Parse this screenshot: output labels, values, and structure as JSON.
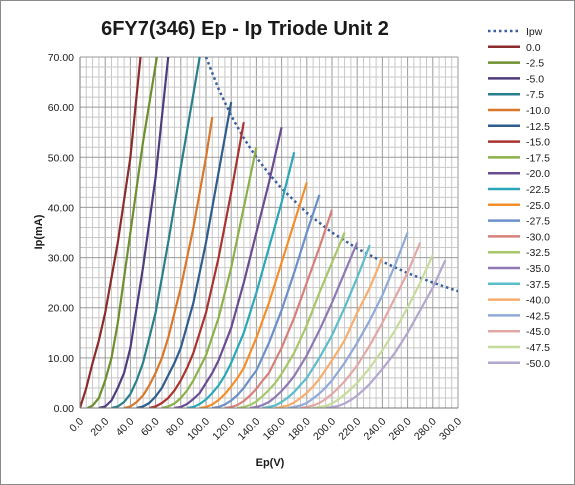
{
  "chart_data": {
    "type": "line",
    "title": "6FY7(346) Ep - Ip Triode Unit 2",
    "xlabel": "Ep(V)",
    "ylabel": "Ip(mA)",
    "xlim": [
      0,
      300
    ],
    "ylim": [
      0,
      70
    ],
    "x_ticks": [
      "0.0",
      "20.0",
      "40.0",
      "60.0",
      "80.0",
      "100.0",
      "120.0",
      "140.0",
      "160.0",
      "180.0",
      "200.0",
      "220.0",
      "240.0",
      "260.0",
      "280.0",
      "300.0"
    ],
    "y_ticks": [
      "0.00",
      "10.00",
      "20.00",
      "30.00",
      "40.00",
      "50.00",
      "60.00",
      "70.00"
    ],
    "grid": true,
    "legend_position": "right",
    "series": [
      {
        "name": "Ipw",
        "style": "dotted",
        "color": "#3a5f9f",
        "x": [
          100,
          110,
          120,
          130,
          140,
          150,
          160,
          180,
          200,
          220,
          240,
          260,
          280,
          300
        ],
        "y": [
          70,
          63.6,
          58.3,
          53.8,
          50,
          46.7,
          43.8,
          38.9,
          35,
          31.8,
          29.2,
          26.9,
          25,
          23.3
        ]
      },
      {
        "name": "0.0",
        "color": "#8b2b2b",
        "x": [
          0,
          5,
          10,
          15,
          20,
          30,
          40,
          48
        ],
        "y": [
          0,
          4,
          9,
          13.5,
          19,
          33,
          50,
          70
        ]
      },
      {
        "name": "-2.5",
        "color": "#6d8f2e",
        "x": [
          6,
          10,
          15,
          20,
          25,
          30,
          40,
          50,
          61
        ],
        "y": [
          0,
          0.5,
          2,
          5.5,
          10,
          17,
          35,
          53,
          70
        ]
      },
      {
        "name": "-5.0",
        "color": "#4e3c7e",
        "x": [
          15,
          20,
          25,
          30,
          35,
          40,
          50,
          60,
          70
        ],
        "y": [
          0,
          0.3,
          1.5,
          4,
          7,
          12,
          28,
          46,
          70
        ]
      },
      {
        "name": "-7.5",
        "color": "#2a7f8c",
        "x": [
          25,
          30,
          35,
          40,
          45,
          50,
          60,
          70,
          80,
          95
        ],
        "y": [
          0,
          0.3,
          1.2,
          2.8,
          5.5,
          9,
          19,
          33,
          48,
          70
        ]
      },
      {
        "name": "-10.0",
        "color": "#d9772a",
        "x": [
          35,
          40,
          45,
          50,
          55,
          60,
          65,
          70,
          80,
          90,
          100,
          105
        ],
        "y": [
          0,
          0.3,
          1.2,
          2.5,
          4.5,
          7,
          10,
          14,
          24,
          36,
          50,
          58
        ]
      },
      {
        "name": "-12.5",
        "color": "#2e5d8e",
        "x": [
          45,
          50,
          55,
          60,
          65,
          70,
          75,
          80,
          90,
          100,
          110,
          120
        ],
        "y": [
          0,
          0.3,
          1,
          2.3,
          4,
          6.5,
          9,
          12,
          21,
          33,
          47,
          61
        ]
      },
      {
        "name": "-15.0",
        "color": "#a9332f",
        "x": [
          55,
          60,
          65,
          70,
          75,
          80,
          85,
          90,
          100,
          110,
          120,
          130
        ],
        "y": [
          0,
          0.3,
          1,
          2,
          3.5,
          5.5,
          8,
          11,
          19,
          30,
          43,
          57
        ]
      },
      {
        "name": "-17.5",
        "color": "#8cb04a",
        "x": [
          65,
          70,
          75,
          80,
          85,
          90,
          95,
          100,
          110,
          120,
          130,
          140
        ],
        "y": [
          0,
          0.3,
          0.9,
          2,
          3.5,
          5.5,
          8,
          10.5,
          18,
          28,
          40,
          52
        ]
      },
      {
        "name": "-20.0",
        "color": "#6a4c93",
        "x": [
          75,
          80,
          85,
          90,
          95,
          100,
          105,
          110,
          120,
          130,
          140,
          150,
          160
        ],
        "y": [
          0,
          0.2,
          0.8,
          1.8,
          3,
          5,
          7,
          9.5,
          16,
          25,
          35,
          45,
          56
        ]
      },
      {
        "name": "-22.5",
        "color": "#2aa7b8",
        "x": [
          85,
          90,
          95,
          100,
          105,
          110,
          115,
          120,
          130,
          140,
          150,
          160,
          170
        ],
        "y": [
          0,
          0.2,
          0.8,
          1.7,
          3,
          4.5,
          6.5,
          9,
          15,
          23,
          32,
          41,
          51
        ]
      },
      {
        "name": "-25.0",
        "color": "#f28e2b",
        "x": [
          95,
          100,
          105,
          110,
          115,
          120,
          125,
          130,
          140,
          150,
          160,
          170,
          180
        ],
        "y": [
          0,
          0.2,
          0.7,
          1.6,
          2.8,
          4.3,
          6,
          8,
          14,
          21,
          29,
          37,
          45
        ]
      },
      {
        "name": "-27.5",
        "color": "#6b8fc9",
        "x": [
          105,
          110,
          115,
          120,
          125,
          130,
          135,
          140,
          150,
          160,
          170,
          180,
          190
        ],
        "y": [
          0,
          0.2,
          0.7,
          1.5,
          2.6,
          4,
          5.8,
          7.5,
          13,
          19.5,
          27,
          35,
          42.5
        ]
      },
      {
        "name": "-30.0",
        "color": "#d6807a",
        "x": [
          115,
          120,
          125,
          130,
          135,
          140,
          145,
          150,
          160,
          170,
          180,
          190,
          200
        ],
        "y": [
          0,
          0.2,
          0.6,
          1.4,
          2.5,
          3.8,
          5.5,
          7,
          12,
          18,
          25,
          32,
          39.5
        ]
      },
      {
        "name": "-32.5",
        "color": "#a6c66a",
        "x": [
          125,
          130,
          135,
          140,
          145,
          150,
          155,
          160,
          170,
          180,
          190,
          200,
          210
        ],
        "y": [
          0,
          0.2,
          0.6,
          1.3,
          2.4,
          3.6,
          5,
          6.8,
          11,
          16.5,
          23,
          29,
          35
        ]
      },
      {
        "name": "-35.0",
        "color": "#8e79b5",
        "x": [
          135,
          140,
          145,
          150,
          155,
          160,
          165,
          170,
          180,
          190,
          200,
          210,
          220
        ],
        "y": [
          0,
          0.2,
          0.6,
          1.2,
          2.2,
          3.4,
          4.8,
          6.4,
          10.5,
          15.5,
          21,
          27,
          33
        ]
      },
      {
        "name": "-37.5",
        "color": "#5bbccc",
        "x": [
          145,
          150,
          155,
          160,
          165,
          170,
          175,
          180,
          190,
          200,
          210,
          220,
          230
        ],
        "y": [
          0,
          0.2,
          0.5,
          1.2,
          2.1,
          3.2,
          4.6,
          6,
          10,
          14.5,
          20,
          26,
          32.5
        ]
      },
      {
        "name": "-40.0",
        "color": "#f7ad6d",
        "x": [
          155,
          160,
          165,
          170,
          175,
          180,
          185,
          190,
          200,
          210,
          220,
          230,
          240
        ],
        "y": [
          0,
          0.2,
          0.5,
          1.1,
          2,
          3,
          4.3,
          5.8,
          9.5,
          13.5,
          19,
          24,
          30
        ]
      },
      {
        "name": "-42.5",
        "color": "#8fa9d9",
        "x": [
          165,
          170,
          175,
          180,
          185,
          190,
          195,
          200,
          210,
          220,
          230,
          240,
          250,
          260
        ],
        "y": [
          0,
          0.2,
          0.5,
          1,
          1.9,
          2.9,
          4.1,
          5.5,
          9,
          13,
          17.5,
          22.5,
          28.5,
          35
        ]
      },
      {
        "name": "-45.0",
        "color": "#e3a8a6",
        "x": [
          175,
          180,
          185,
          190,
          195,
          200,
          205,
          210,
          220,
          230,
          240,
          250,
          260,
          270
        ],
        "y": [
          0,
          0.2,
          0.5,
          1,
          1.8,
          2.8,
          4,
          5.3,
          8.5,
          12.5,
          17,
          22,
          27,
          33
        ]
      },
      {
        "name": "-47.5",
        "color": "#c6dc9a",
        "x": [
          185,
          190,
          195,
          200,
          205,
          210,
          215,
          220,
          230,
          240,
          250,
          260,
          270,
          280
        ],
        "y": [
          0,
          0.2,
          0.4,
          0.9,
          1.7,
          2.7,
          3.8,
          5,
          8,
          11.5,
          15.5,
          20,
          25,
          30.5
        ]
      },
      {
        "name": "-50.0",
        "color": "#b3a6cf",
        "x": [
          195,
          200,
          205,
          210,
          215,
          220,
          225,
          230,
          240,
          250,
          260,
          270,
          280,
          290
        ],
        "y": [
          0,
          0.2,
          0.4,
          0.9,
          1.6,
          2.5,
          3.6,
          4.8,
          7.8,
          11,
          15,
          19.5,
          24,
          29.5
        ]
      }
    ]
  }
}
